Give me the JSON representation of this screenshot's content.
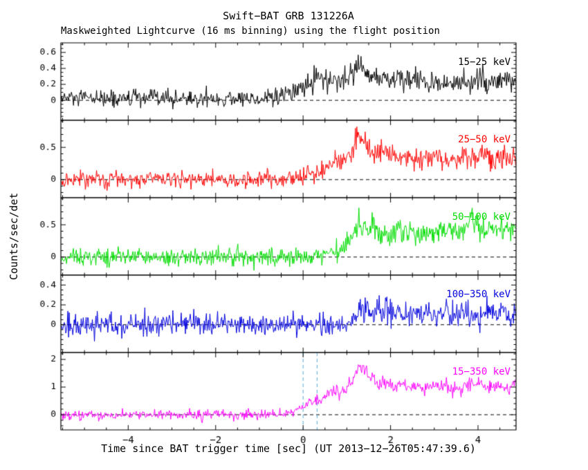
{
  "chart_data": {
    "type": "line",
    "title": "Swift−BAT GRB 131226A",
    "subtitle": "Maskweighted Lightcurve (16 ms binning) using the flight position",
    "xlabel": "Time since BAT trigger time [sec] (UT 2013−12−26T05:47:39.6)",
    "ylabel": "Counts/sec/det",
    "xlim": [
      -5.54,
      4.87
    ],
    "xticks": [
      -4,
      -2,
      0,
      2,
      4
    ],
    "x_minor_step": 0.5,
    "bin_seconds": 0.016,
    "grid": false,
    "legend_position": "top-right-inside-each-panel",
    "zero_line": {
      "style": "dashed",
      "color": "#000000",
      "y": 0
    },
    "trigger_markers": {
      "panel": 4,
      "x": [
        0.0,
        0.32
      ],
      "color": "#55aadd",
      "style": "dashed"
    },
    "panels": [
      {
        "label": "15−25 keV",
        "color": "#000000",
        "ylim": [
          -0.25,
          0.72
        ],
        "yticks": [
          0,
          0.2,
          0.4,
          0.6
        ],
        "y_minor_step": 0.05,
        "noise_sigma": 0.055,
        "mean_profile": [
          [
            -5.54,
            0.02
          ],
          [
            -1.2,
            0.02
          ],
          [
            -0.5,
            0.04
          ],
          [
            -0.2,
            0.1
          ],
          [
            0.0,
            0.18
          ],
          [
            0.3,
            0.27
          ],
          [
            0.6,
            0.25
          ],
          [
            0.85,
            0.2
          ],
          [
            1.05,
            0.3
          ],
          [
            1.25,
            0.42
          ],
          [
            1.4,
            0.38
          ],
          [
            1.6,
            0.3
          ],
          [
            2.0,
            0.27
          ],
          [
            2.5,
            0.24
          ],
          [
            3.0,
            0.22
          ],
          [
            3.5,
            0.22
          ],
          [
            4.0,
            0.24
          ],
          [
            4.87,
            0.22
          ]
        ]
      },
      {
        "label": "25−50 keV",
        "color": "#ff0000",
        "ylim": [
          -0.28,
          0.92
        ],
        "yticks": [
          0,
          0.5
        ],
        "y_minor_step": 0.1,
        "noise_sigma": 0.065,
        "mean_profile": [
          [
            -5.54,
            0.0
          ],
          [
            -0.6,
            0.0
          ],
          [
            -0.2,
            0.02
          ],
          [
            0.1,
            0.08
          ],
          [
            0.4,
            0.15
          ],
          [
            0.7,
            0.25
          ],
          [
            0.95,
            0.3
          ],
          [
            1.15,
            0.45
          ],
          [
            1.27,
            0.7
          ],
          [
            1.4,
            0.55
          ],
          [
            1.6,
            0.42
          ],
          [
            1.9,
            0.4
          ],
          [
            2.3,
            0.34
          ],
          [
            2.7,
            0.32
          ],
          [
            3.1,
            0.36
          ],
          [
            3.5,
            0.3
          ],
          [
            3.9,
            0.36
          ],
          [
            4.3,
            0.34
          ],
          [
            4.87,
            0.38
          ]
        ]
      },
      {
        "label": "50−100 keV",
        "color": "#00dd00",
        "ylim": [
          -0.28,
          0.92
        ],
        "yticks": [
          0,
          0.5
        ],
        "y_minor_step": 0.1,
        "noise_sigma": 0.065,
        "mean_profile": [
          [
            -5.54,
            0.0
          ],
          [
            0.0,
            0.0
          ],
          [
            0.4,
            0.03
          ],
          [
            0.7,
            0.08
          ],
          [
            0.95,
            0.15
          ],
          [
            1.15,
            0.35
          ],
          [
            1.3,
            0.52
          ],
          [
            1.5,
            0.48
          ],
          [
            1.7,
            0.36
          ],
          [
            2.0,
            0.34
          ],
          [
            2.4,
            0.42
          ],
          [
            2.8,
            0.34
          ],
          [
            3.2,
            0.4
          ],
          [
            3.6,
            0.46
          ],
          [
            3.9,
            0.56
          ],
          [
            4.15,
            0.44
          ],
          [
            4.5,
            0.4
          ],
          [
            4.87,
            0.46
          ]
        ]
      },
      {
        "label": "100−350 keV",
        "color": "#0000dd",
        "ylim": [
          -0.28,
          0.5
        ],
        "yticks": [
          0,
          0.2,
          0.4
        ],
        "y_minor_step": 0.05,
        "noise_sigma": 0.055,
        "mean_profile": [
          [
            -5.54,
            0.0
          ],
          [
            0.9,
            0.0
          ],
          [
            1.15,
            0.06
          ],
          [
            1.3,
            0.16
          ],
          [
            1.5,
            0.13
          ],
          [
            1.8,
            0.12
          ],
          [
            2.2,
            0.11
          ],
          [
            2.6,
            0.12
          ],
          [
            3.0,
            0.11
          ],
          [
            3.4,
            0.12
          ],
          [
            3.8,
            0.11
          ],
          [
            4.2,
            0.13
          ],
          [
            4.87,
            0.12
          ]
        ]
      },
      {
        "label": "15−350 keV",
        "color": "#ff00ff",
        "ylim": [
          -0.55,
          2.25
        ],
        "yticks": [
          0,
          1,
          2
        ],
        "y_minor_step": 0.2,
        "noise_sigma": 0.09,
        "mean_profile": [
          [
            -5.54,
            0.0
          ],
          [
            -0.6,
            0.0
          ],
          [
            -0.25,
            0.04
          ],
          [
            0.0,
            0.28
          ],
          [
            0.25,
            0.5
          ],
          [
            0.45,
            0.62
          ],
          [
            0.65,
            0.85
          ],
          [
            0.85,
            0.78
          ],
          [
            1.0,
            0.92
          ],
          [
            1.15,
            1.3
          ],
          [
            1.3,
            1.78
          ],
          [
            1.45,
            1.45
          ],
          [
            1.65,
            1.2
          ],
          [
            1.95,
            1.15
          ],
          [
            2.3,
            1.05
          ],
          [
            2.7,
            1.0
          ],
          [
            3.1,
            1.05
          ],
          [
            3.5,
            0.95
          ],
          [
            3.9,
            1.1
          ],
          [
            4.3,
            1.0
          ],
          [
            4.87,
            1.1
          ]
        ]
      }
    ]
  }
}
